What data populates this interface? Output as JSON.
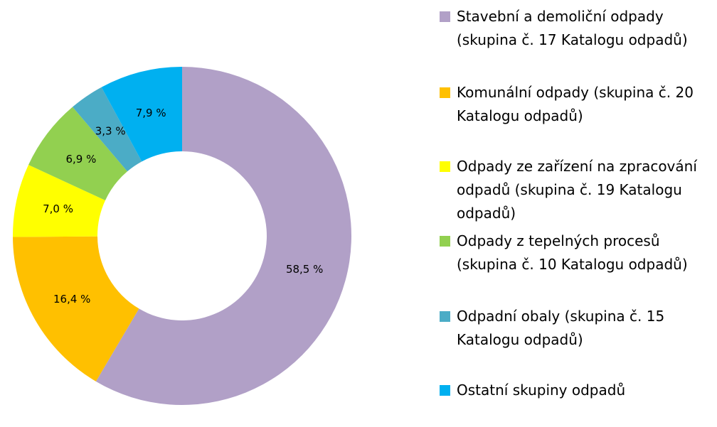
{
  "chart_data": {
    "type": "pie",
    "donut": true,
    "categories": [
      "Stavební a demoliční odpady (skupina č. 17 Katalogu odpadů)",
      "Komunální odpady (skupina č. 20 Katalogu odpadů)",
      "Odpady ze zařízení na zpracování odpadů (skupina č. 19 Katalogu odpadů)",
      "Odpady z tepelných procesů (skupina č. 10 Katalogu odpadů)",
      "Odpadní obaly (skupina č. 15 Katalogu odpadů)",
      "Ostatní skupiny odpadů"
    ],
    "values": [
      58.5,
      16.4,
      7.0,
      6.9,
      3.3,
      7.9
    ],
    "data_labels": [
      "58,5 %",
      "16,4 %",
      "7,0 %",
      "6,9 %",
      "3,3 %",
      "7,9 %"
    ],
    "colors": [
      "#B1A0C7",
      "#FFC000",
      "#FFFF00",
      "#92D050",
      "#4BACC6",
      "#00B0F0"
    ],
    "legend_placement": "right"
  },
  "legend": {
    "items": [
      {
        "label": "Stavební a demoliční odpady (skupina č. 17 Katalogu odpadů)",
        "color": "#B1A0C7"
      },
      {
        "label": "Komunální odpady (skupina č. 20 Katalogu odpadů)",
        "color": "#FFC000"
      },
      {
        "label": "Odpady ze zařízení na zpracování odpadů (skupina č. 19 Katalogu odpadů)",
        "color": "#FFFF00"
      },
      {
        "label": "Odpady z tepelných procesů (skupina č. 10 Katalogu odpadů)",
        "color": "#92D050"
      },
      {
        "label": "Odpadní obaly (skupina č. 15 Katalogu odpadů)",
        "color": "#4BACC6"
      },
      {
        "label": "Ostatní skupiny odpadů",
        "color": "#00B0F0"
      }
    ]
  }
}
